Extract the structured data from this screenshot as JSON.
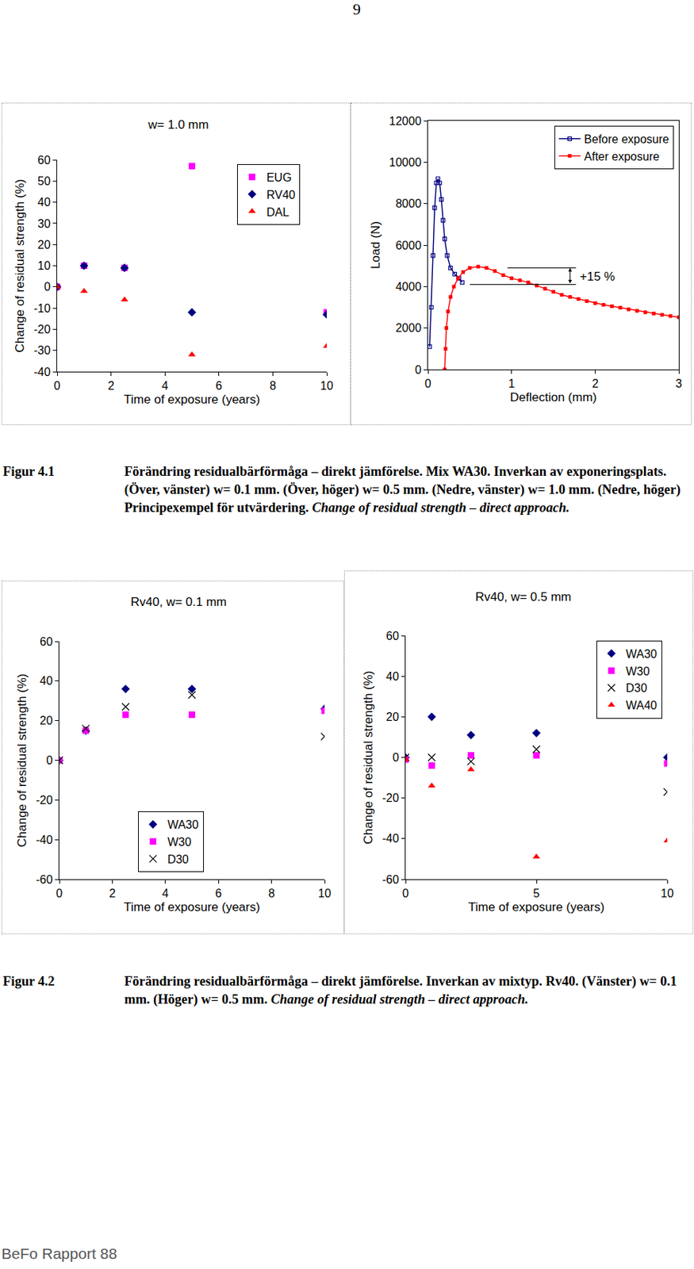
{
  "page_number": "9",
  "chart_data": [
    {
      "type": "scatter",
      "title": "w= 1.0 mm",
      "x_label": "Time of exposure (years)",
      "y_label": "Change of residual strength (%)",
      "xlim": [
        0,
        10
      ],
      "xticks": [
        0,
        2,
        4,
        6,
        8,
        10
      ],
      "ylim": [
        -40,
        60
      ],
      "yticks": [
        -40,
        -30,
        -20,
        -10,
        0,
        10,
        20,
        30,
        40,
        50,
        60
      ],
      "grid": false,
      "legend": "top right",
      "series": [
        {
          "name": "EUG",
          "color": "#ff00ff",
          "marker": "square",
          "x": [
            0,
            1,
            2.5,
            5,
            10
          ],
          "values": [
            0,
            10,
            9,
            57,
            -12
          ]
        },
        {
          "name": "RV40",
          "color": "#000080",
          "marker": "diamond",
          "x": [
            0,
            1,
            2.5,
            5,
            10
          ],
          "values": [
            0,
            10,
            9,
            -12,
            -13
          ]
        },
        {
          "name": "DAL",
          "color": "#ff0000",
          "marker": "triangle",
          "x": [
            0,
            1,
            2.5,
            5,
            10
          ],
          "values": [
            0,
            -2,
            -6,
            -32,
            -28
          ]
        }
      ]
    },
    {
      "type": "line",
      "x_label": "Deflection (mm)",
      "y_label": "Load (N)",
      "xlim": [
        0,
        3
      ],
      "xticks": [
        0,
        1,
        2,
        3
      ],
      "ylim": [
        0,
        12000
      ],
      "yticks": [
        0,
        2000,
        4000,
        6000,
        8000,
        10000,
        12000
      ],
      "grid": false,
      "legend": "top right",
      "series": [
        {
          "name": "Before exposure",
          "color": "#000080",
          "marker": "square-open",
          "line_style": "solid",
          "x": [
            0.02,
            0.04,
            0.06,
            0.08,
            0.1,
            0.12,
            0.14,
            0.16,
            0.18,
            0.2,
            0.23,
            0.27,
            0.32,
            0.37,
            0.41
          ],
          "values": [
            1100,
            3000,
            5500,
            7800,
            9000,
            9200,
            9000,
            8200,
            7200,
            6300,
            5500,
            4900,
            4600,
            4400,
            4200
          ]
        },
        {
          "name": "After exposure",
          "color": "#ff0000",
          "marker": "square",
          "line_style": "solid",
          "x": [
            0.2,
            0.21,
            0.22,
            0.24,
            0.27,
            0.31,
            0.36,
            0.42,
            0.5,
            0.6,
            0.7,
            0.8,
            0.9,
            1.0,
            1.1,
            1.2,
            1.3,
            1.4,
            1.5,
            1.6,
            1.7,
            1.8,
            1.9,
            2.0,
            2.1,
            2.2,
            2.3,
            2.4,
            2.5,
            2.6,
            2.7,
            2.8,
            2.9,
            3.0
          ],
          "values": [
            0,
            1000,
            2000,
            2800,
            3500,
            4000,
            4400,
            4700,
            4900,
            4960,
            4900,
            4750,
            4550,
            4400,
            4300,
            4200,
            4050,
            3900,
            3750,
            3600,
            3500,
            3400,
            3300,
            3200,
            3120,
            3050,
            2980,
            2900,
            2830,
            2760,
            2700,
            2640,
            2580,
            2520
          ]
        }
      ],
      "annotations": [
        {
          "text": "+15 %",
          "x": 1.8,
          "y": 4500,
          "arrow_x": 1.7,
          "from_y": 4100,
          "to_y": 4900,
          "lines": [
            {
              "y": 4900,
              "x": [
                0.95,
                1.77
              ]
            },
            {
              "y": 4100,
              "x": [
                0.5,
                1.77
              ]
            }
          ]
        }
      ]
    },
    {
      "type": "scatter",
      "title": "Rv40, w= 0.1 mm",
      "x_label": "Time of exposure (years)",
      "y_label": "Change of residual strength (%)",
      "xlim": [
        0,
        10
      ],
      "xticks": [
        0,
        2,
        4,
        6,
        8,
        10
      ],
      "ylim": [
        -60,
        60
      ],
      "yticks": [
        -60,
        -40,
        -20,
        0,
        20,
        40,
        60
      ],
      "grid": false,
      "legend": "bottom center",
      "series": [
        {
          "name": "WA30",
          "color": "#000080",
          "marker": "diamond",
          "x": [
            0,
            1,
            2.5,
            5,
            10
          ],
          "values": [
            0,
            15,
            36,
            36,
            26
          ]
        },
        {
          "name": "W30",
          "color": "#ff00ff",
          "marker": "square",
          "x": [
            0,
            1,
            2.5,
            5,
            10
          ],
          "values": [
            0,
            15,
            23,
            23,
            25
          ]
        },
        {
          "name": "D30",
          "color": "#000000",
          "marker": "x",
          "x": [
            0,
            1,
            2.5,
            5,
            10
          ],
          "values": [
            0,
            16,
            27,
            33,
            12
          ]
        }
      ]
    },
    {
      "type": "scatter",
      "title": "Rv40, w= 0.5 mm",
      "x_label": "Time of exposure (years)",
      "y_label": "Change of residual strength (%)",
      "xlim": [
        0,
        10
      ],
      "xticks": [
        0,
        5,
        10
      ],
      "ylim": [
        -60,
        60
      ],
      "yticks": [
        -60,
        -40,
        -20,
        0,
        20,
        40,
        60
      ],
      "grid": false,
      "legend": "top right",
      "series": [
        {
          "name": "WA30",
          "color": "#000080",
          "marker": "diamond",
          "x": [
            0,
            1,
            2.5,
            5,
            10
          ],
          "values": [
            0,
            20,
            11,
            12,
            0
          ]
        },
        {
          "name": "W30",
          "color": "#ff00ff",
          "marker": "square",
          "x": [
            0,
            1,
            2.5,
            5,
            10
          ],
          "values": [
            -1,
            -4,
            1,
            1,
            -3
          ]
        },
        {
          "name": "D30",
          "color": "#000000",
          "marker": "x",
          "x": [
            0,
            1,
            2.5,
            5,
            10
          ],
          "values": [
            0,
            0,
            -2,
            4,
            -17
          ]
        },
        {
          "name": "WA40",
          "color": "#ff0000",
          "marker": "triangle",
          "x": [
            0,
            1,
            2.5,
            5,
            10
          ],
          "values": [
            -1,
            -14,
            -6,
            -49,
            -41
          ]
        }
      ]
    }
  ],
  "captions": [
    {
      "label": "Figur 4.1",
      "text": "Förändring residualbärförmåga – direkt jämförelse. Mix WA30. Inverkan av exponeringsplats. (Över, vänster) w= 0.1 mm. (Över, höger) w= 0.5 mm. (Nedre, vänster) w= 1.0 mm. (Nedre, höger) Principexempel för utvärdering.",
      "text_en": "Change of residual strength – direct approach."
    },
    {
      "label": "Figur 4.2",
      "text": "Förändring residualbärförmåga – direkt jämförelse. Inverkan av mixtyp. Rv40. (Vänster) w= 0.1 mm. (Höger) w= 0.5 mm.",
      "text_en": "Change of residual strength – direct approach."
    }
  ],
  "footer": "BeFo Rapport 88"
}
